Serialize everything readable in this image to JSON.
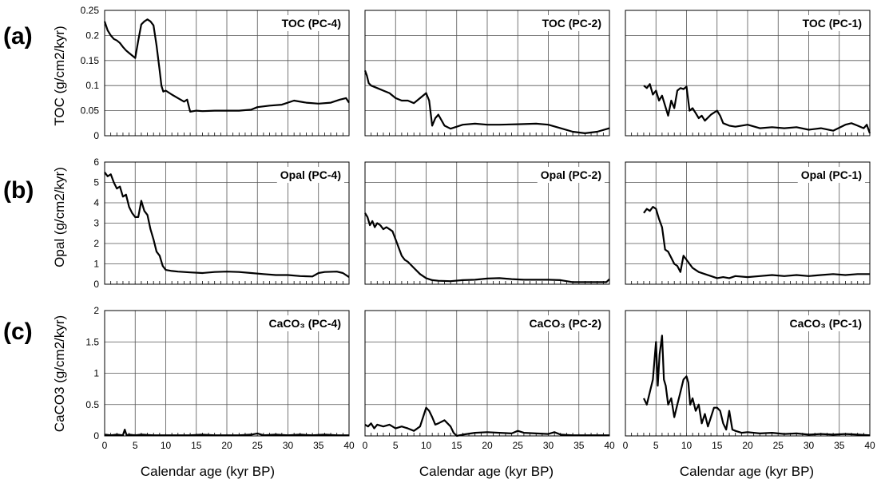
{
  "row_letters": [
    "(a)",
    "(b)",
    "(c)"
  ],
  "ylabels": [
    "TOC (g/cm2/kyr)",
    "Opal (g/cm2/kyr)",
    "CaCO3 (g/cm2/kyr)"
  ],
  "xlabel": "Calendar age (kyr BP)",
  "colors": {
    "line": "#000000",
    "grid": "#555555",
    "frame": "#000000"
  },
  "chart_data": [
    {
      "type": "line",
      "row": 0,
      "col": 0,
      "title": "TOC (PC-4)",
      "xlim": [
        0,
        40
      ],
      "ylim": [
        0,
        0.25
      ],
      "xticks": [
        0,
        5,
        10,
        15,
        20,
        25,
        30,
        35,
        40
      ],
      "yticks": [
        "0",
        "0.05",
        "0.1",
        "0.15",
        "0.2",
        "0.25"
      ],
      "grid": true,
      "x": [
        0,
        0.5,
        1,
        1.5,
        2,
        2.5,
        3,
        3.5,
        4,
        4.5,
        5,
        5.5,
        6,
        6.5,
        7,
        7.5,
        8,
        8.5,
        9,
        9.3,
        9.6,
        10,
        11,
        12,
        13,
        13.5,
        14,
        15,
        16,
        18,
        20,
        22,
        24,
        25,
        27,
        29,
        31,
        33,
        35,
        37,
        38.5,
        39.5,
        40
      ],
      "y": [
        0.228,
        0.21,
        0.2,
        0.193,
        0.19,
        0.185,
        0.177,
        0.17,
        0.165,
        0.16,
        0.155,
        0.19,
        0.222,
        0.228,
        0.232,
        0.228,
        0.22,
        0.18,
        0.13,
        0.1,
        0.088,
        0.09,
        0.082,
        0.075,
        0.068,
        0.072,
        0.048,
        0.05,
        0.049,
        0.05,
        0.05,
        0.05,
        0.052,
        0.057,
        0.06,
        0.062,
        0.07,
        0.066,
        0.064,
        0.066,
        0.072,
        0.075,
        0.066
      ]
    },
    {
      "type": "line",
      "row": 0,
      "col": 1,
      "title": "TOC (PC-2)",
      "xlim": [
        0,
        40
      ],
      "ylim": [
        0,
        0.25
      ],
      "xticks": [
        0,
        5,
        10,
        15,
        20,
        25,
        30,
        35,
        40
      ],
      "grid": true,
      "x": [
        0,
        0.3,
        0.6,
        1,
        2,
        3,
        4,
        5,
        6,
        7,
        8,
        9,
        10,
        10.5,
        11,
        11.5,
        12,
        13,
        14,
        15,
        16,
        18,
        20,
        22,
        25,
        28,
        30,
        32,
        34,
        36,
        38,
        40
      ],
      "y": [
        0.13,
        0.12,
        0.105,
        0.1,
        0.095,
        0.09,
        0.085,
        0.075,
        0.07,
        0.07,
        0.065,
        0.075,
        0.085,
        0.07,
        0.02,
        0.035,
        0.042,
        0.02,
        0.014,
        0.018,
        0.022,
        0.024,
        0.022,
        0.022,
        0.023,
        0.024,
        0.022,
        0.015,
        0.008,
        0.005,
        0.008,
        0.015
      ]
    },
    {
      "type": "line",
      "row": 0,
      "col": 2,
      "title": "TOC (PC-1)",
      "xlim": [
        0,
        40
      ],
      "ylim": [
        0,
        0.25
      ],
      "xticks": [
        0,
        5,
        10,
        15,
        20,
        25,
        30,
        35,
        40
      ],
      "grid": true,
      "x": [
        3,
        3.5,
        4,
        4.5,
        5,
        5.5,
        6,
        6.5,
        7,
        7.5,
        8,
        8.5,
        9,
        9.5,
        10,
        10.5,
        11,
        11.5,
        12,
        12.5,
        13,
        14,
        15,
        15.5,
        16,
        17,
        18,
        20,
        22,
        24,
        26,
        28,
        30,
        32,
        34,
        36,
        37,
        38,
        39,
        39.5,
        40
      ],
      "y": [
        0.1,
        0.095,
        0.103,
        0.082,
        0.09,
        0.07,
        0.08,
        0.06,
        0.04,
        0.07,
        0.055,
        0.09,
        0.095,
        0.093,
        0.098,
        0.05,
        0.055,
        0.045,
        0.035,
        0.04,
        0.03,
        0.042,
        0.05,
        0.04,
        0.025,
        0.02,
        0.018,
        0.022,
        0.015,
        0.017,
        0.015,
        0.017,
        0.012,
        0.015,
        0.01,
        0.022,
        0.025,
        0.02,
        0.015,
        0.022,
        0.005
      ]
    },
    {
      "type": "line",
      "row": 1,
      "col": 0,
      "title": "Opal (PC-4)",
      "xlim": [
        0,
        40
      ],
      "ylim": [
        0,
        6
      ],
      "xticks": [
        0,
        5,
        10,
        15,
        20,
        25,
        30,
        35,
        40
      ],
      "yticks": [
        "0",
        "1",
        "2",
        "3",
        "4",
        "5",
        "6"
      ],
      "grid": true,
      "x": [
        0,
        0.5,
        1,
        1.5,
        2,
        2.5,
        3,
        3.5,
        4,
        4.5,
        5,
        5.5,
        6,
        6.5,
        7,
        7.5,
        8,
        8.5,
        9,
        9.5,
        10,
        11,
        12,
        14,
        16,
        18,
        20,
        22,
        24,
        26,
        28,
        30,
        32,
        34,
        35,
        36,
        38,
        39,
        40
      ],
      "y": [
        5.5,
        5.3,
        5.4,
        5.0,
        4.7,
        4.8,
        4.3,
        4.4,
        3.8,
        3.5,
        3.3,
        3.3,
        4.1,
        3.6,
        3.4,
        2.7,
        2.2,
        1.6,
        1.4,
        0.9,
        0.7,
        0.65,
        0.62,
        0.58,
        0.55,
        0.6,
        0.62,
        0.6,
        0.55,
        0.5,
        0.45,
        0.45,
        0.4,
        0.38,
        0.55,
        0.6,
        0.62,
        0.55,
        0.35
      ]
    },
    {
      "type": "line",
      "row": 1,
      "col": 1,
      "title": "Opal (PC-2)",
      "xlim": [
        0,
        40
      ],
      "ylim": [
        0,
        6
      ],
      "xticks": [
        0,
        5,
        10,
        15,
        20,
        25,
        30,
        35,
        40
      ],
      "grid": true,
      "x": [
        0,
        0.4,
        0.8,
        1.2,
        1.6,
        2,
        2.5,
        3,
        3.5,
        4,
        4.5,
        5,
        5.5,
        6,
        6.5,
        7,
        8,
        9,
        10,
        11,
        12,
        14,
        16,
        18,
        20,
        22,
        24,
        26,
        28,
        30,
        32,
        34,
        36,
        38,
        39.5,
        40
      ],
      "y": [
        3.5,
        3.3,
        2.9,
        3.1,
        2.8,
        3.0,
        2.9,
        2.7,
        2.8,
        2.7,
        2.6,
        2.2,
        1.8,
        1.4,
        1.2,
        1.1,
        0.8,
        0.5,
        0.3,
        0.2,
        0.17,
        0.15,
        0.2,
        0.22,
        0.28,
        0.3,
        0.25,
        0.22,
        0.22,
        0.22,
        0.2,
        0.1,
        0.1,
        0.1,
        0.1,
        0.25
      ]
    },
    {
      "type": "line",
      "row": 1,
      "col": 2,
      "title": "Opal (PC-1)",
      "xlim": [
        0,
        40
      ],
      "ylim": [
        0,
        6
      ],
      "xticks": [
        0,
        5,
        10,
        15,
        20,
        25,
        30,
        35,
        40
      ],
      "grid": true,
      "x": [
        3,
        3.5,
        4,
        4.5,
        5,
        5.5,
        6,
        6.5,
        7,
        7.5,
        8,
        8.5,
        9,
        9.5,
        10,
        10.5,
        11,
        12,
        13,
        14,
        15,
        16,
        17,
        18,
        20,
        22,
        24,
        26,
        28,
        30,
        32,
        34,
        36,
        38,
        40
      ],
      "y": [
        3.5,
        3.7,
        3.6,
        3.8,
        3.7,
        3.2,
        2.8,
        1.7,
        1.6,
        1.3,
        1.0,
        0.9,
        0.6,
        1.4,
        1.2,
        1.0,
        0.8,
        0.6,
        0.5,
        0.4,
        0.3,
        0.35,
        0.3,
        0.4,
        0.35,
        0.4,
        0.45,
        0.4,
        0.45,
        0.4,
        0.45,
        0.5,
        0.45,
        0.5,
        0.5
      ]
    },
    {
      "type": "line",
      "row": 2,
      "col": 0,
      "title": "CaCO₃ (PC-4)",
      "xlim": [
        0,
        40
      ],
      "ylim": [
        0,
        2
      ],
      "xticks": [
        0,
        5,
        10,
        15,
        20,
        25,
        30,
        35,
        40
      ],
      "yticks": [
        "0",
        "0.5",
        "1",
        "1.5",
        "2"
      ],
      "grid": true,
      "x": [
        0,
        1,
        2,
        3,
        3.3,
        3.6,
        4,
        5,
        6,
        8,
        10,
        12,
        14,
        16,
        18,
        20,
        22,
        24,
        25,
        26,
        28,
        30,
        32,
        34,
        36,
        38,
        40
      ],
      "y": [
        0.02,
        0.01,
        0.02,
        0.01,
        0.1,
        0.01,
        0.02,
        0.01,
        0.02,
        0.01,
        0.01,
        0.01,
        0.01,
        0.02,
        0.01,
        0.01,
        0.01,
        0.02,
        0.04,
        0.01,
        0.02,
        0.01,
        0.02,
        0.01,
        0.02,
        0.01,
        0.01
      ]
    },
    {
      "type": "line",
      "row": 2,
      "col": 1,
      "title": "CaCO₃ (PC-2)",
      "xlim": [
        0,
        40
      ],
      "ylim": [
        0,
        2
      ],
      "xticks": [
        0,
        5,
        10,
        15,
        20,
        25,
        30,
        35,
        40
      ],
      "grid": true,
      "x": [
        0,
        0.5,
        1,
        1.5,
        2,
        3,
        4,
        5,
        6,
        7,
        8,
        9,
        9.5,
        10,
        10.5,
        11,
        11.5,
        12,
        13,
        14,
        14.5,
        15,
        16,
        18,
        20,
        22,
        24,
        25,
        26,
        28,
        30,
        31,
        32,
        34,
        36,
        38,
        40
      ],
      "y": [
        0.18,
        0.15,
        0.2,
        0.12,
        0.18,
        0.15,
        0.18,
        0.12,
        0.15,
        0.12,
        0.08,
        0.15,
        0.3,
        0.45,
        0.4,
        0.3,
        0.18,
        0.2,
        0.25,
        0.15,
        0.05,
        0.0,
        0.02,
        0.05,
        0.06,
        0.05,
        0.04,
        0.08,
        0.05,
        0.04,
        0.03,
        0.06,
        0.02,
        0.01,
        0.01,
        0.01,
        0.01
      ]
    },
    {
      "type": "line",
      "row": 2,
      "col": 2,
      "title": "CaCO₃ (PC-1)",
      "xlim": [
        0,
        40
      ],
      "ylim": [
        0,
        2
      ],
      "xticks": [
        0,
        5,
        10,
        15,
        20,
        25,
        30,
        35,
        40
      ],
      "grid": true,
      "x": [
        3,
        3.5,
        4,
        4.5,
        5,
        5.3,
        5.6,
        6,
        6.3,
        6.6,
        7,
        7.5,
        8,
        8.5,
        9,
        9.5,
        10,
        10.3,
        10.6,
        11,
        11.5,
        12,
        12.5,
        13,
        13.5,
        14,
        14.5,
        15,
        15.5,
        16,
        16.5,
        17,
        17.5,
        18,
        19,
        20,
        22,
        24,
        26,
        28,
        30,
        32,
        34,
        36,
        38,
        40
      ],
      "y": [
        0.6,
        0.5,
        0.7,
        0.9,
        1.5,
        0.8,
        1.3,
        1.6,
        0.9,
        0.8,
        0.5,
        0.6,
        0.3,
        0.5,
        0.7,
        0.9,
        0.95,
        0.85,
        0.5,
        0.6,
        0.4,
        0.5,
        0.2,
        0.35,
        0.15,
        0.3,
        0.45,
        0.45,
        0.4,
        0.2,
        0.1,
        0.4,
        0.1,
        0.08,
        0.05,
        0.06,
        0.04,
        0.05,
        0.03,
        0.04,
        0.02,
        0.03,
        0.02,
        0.03,
        0.02,
        0.01
      ]
    }
  ]
}
